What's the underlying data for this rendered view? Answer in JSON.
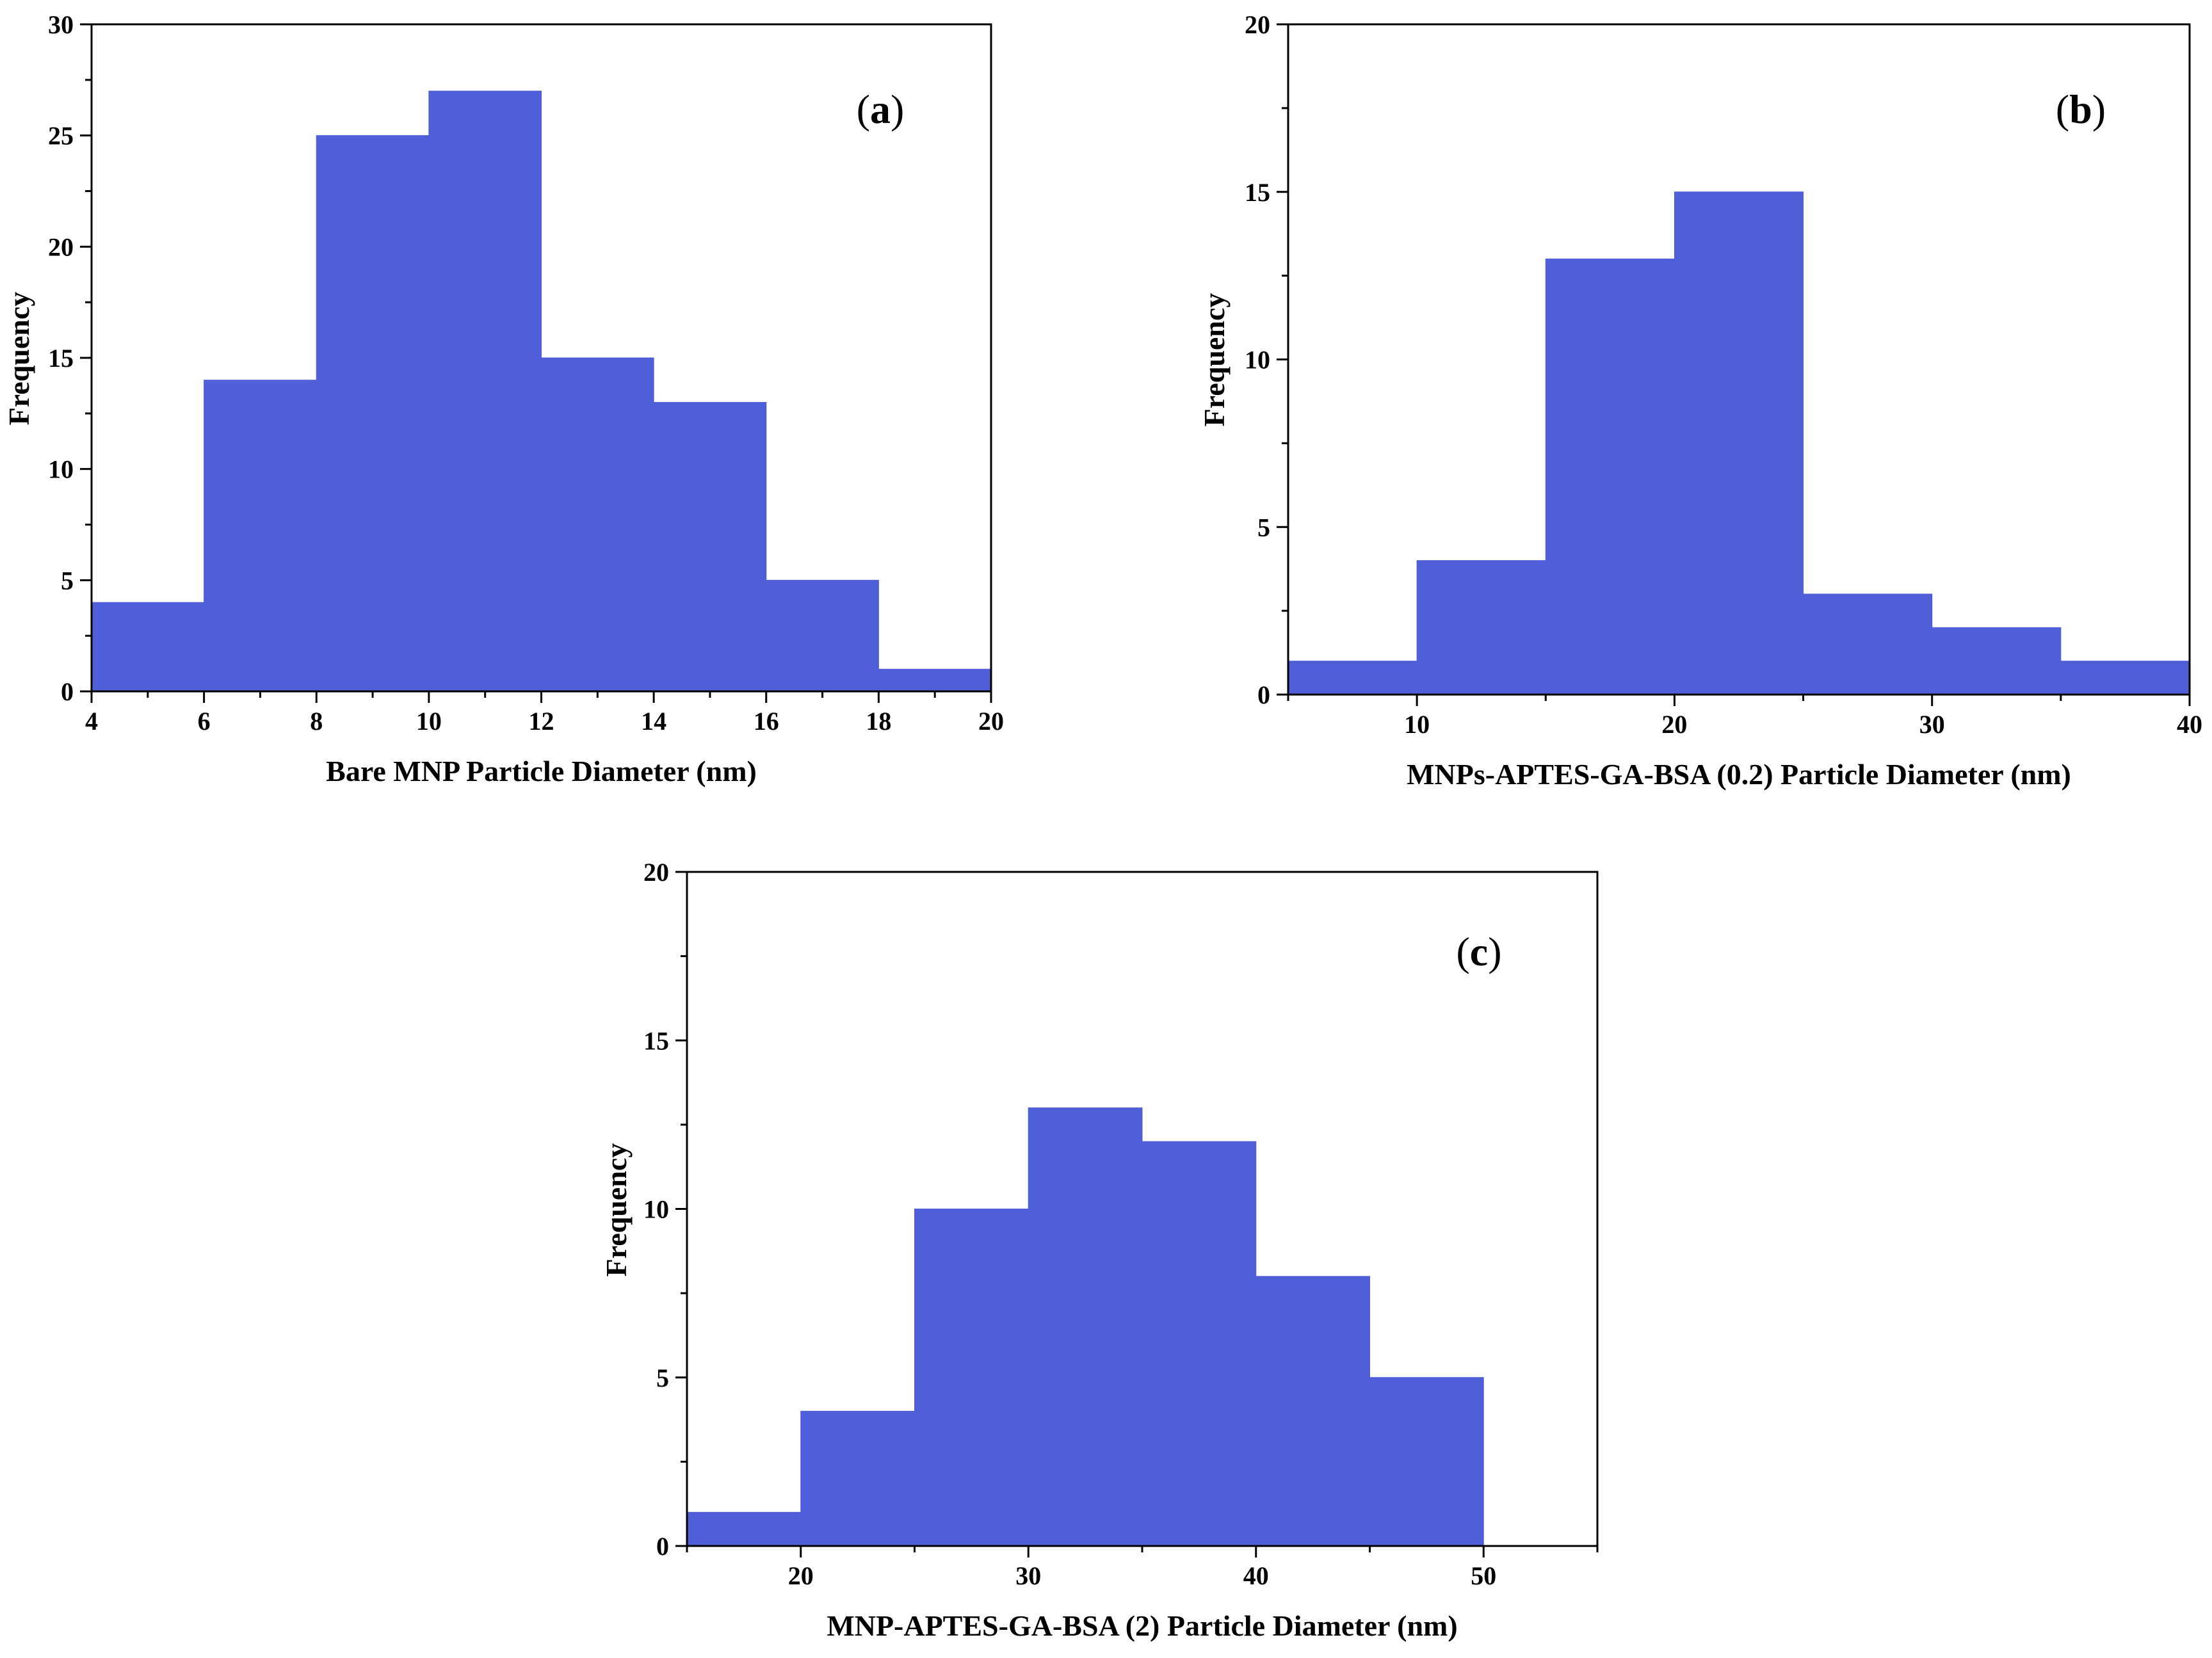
{
  "colors": {
    "bar_fill": "#4f5fd8",
    "axis": "#000000",
    "background": "#ffffff"
  },
  "chart_data": [
    {
      "type": "bar",
      "id": "a",
      "label_letter": "a",
      "histogram": true,
      "bin_edges": [
        4,
        6,
        8,
        10,
        12,
        14,
        16,
        18,
        20
      ],
      "values": [
        4,
        14,
        25,
        27,
        15,
        13,
        5,
        1
      ],
      "xlim": [
        4,
        20
      ],
      "ylim": [
        0,
        30
      ],
      "xticks": [
        4,
        6,
        8,
        10,
        12,
        14,
        16,
        18,
        20
      ],
      "yticks": [
        0,
        5,
        10,
        15,
        20,
        25,
        30
      ],
      "xlabel": "Bare MNP Particle Diameter (nm)",
      "ylabel": "Frequency",
      "title": ""
    },
    {
      "type": "bar",
      "id": "b",
      "label_letter": "b",
      "histogram": true,
      "bin_edges": [
        5,
        10,
        15,
        20,
        25,
        30,
        35,
        40
      ],
      "values": [
        1,
        4,
        13,
        15,
        3,
        2,
        1
      ],
      "xlim": [
        5,
        40
      ],
      "ylim": [
        0,
        20
      ],
      "xticks": [
        10,
        20,
        30,
        40
      ],
      "yticks": [
        0,
        5,
        10,
        15,
        20
      ],
      "xlabel": "MNPs-APTES-GA-BSA (0.2) Particle Diameter (nm)",
      "ylabel": "Frequency",
      "title": ""
    },
    {
      "type": "bar",
      "id": "c",
      "label_letter": "c",
      "histogram": true,
      "bin_edges": [
        15,
        20,
        25,
        30,
        35,
        40,
        45,
        50
      ],
      "values": [
        1,
        4,
        10,
        13,
        12,
        8,
        5
      ],
      "xlim": [
        15,
        55
      ],
      "ylim": [
        0,
        20
      ],
      "xticks": [
        20,
        30,
        40,
        50
      ],
      "yticks": [
        0,
        5,
        10,
        15,
        20
      ],
      "xlabel": "MNP-APTES-GA-BSA (2) Particle Diameter (nm)",
      "ylabel": "Frequency",
      "title": ""
    }
  ]
}
